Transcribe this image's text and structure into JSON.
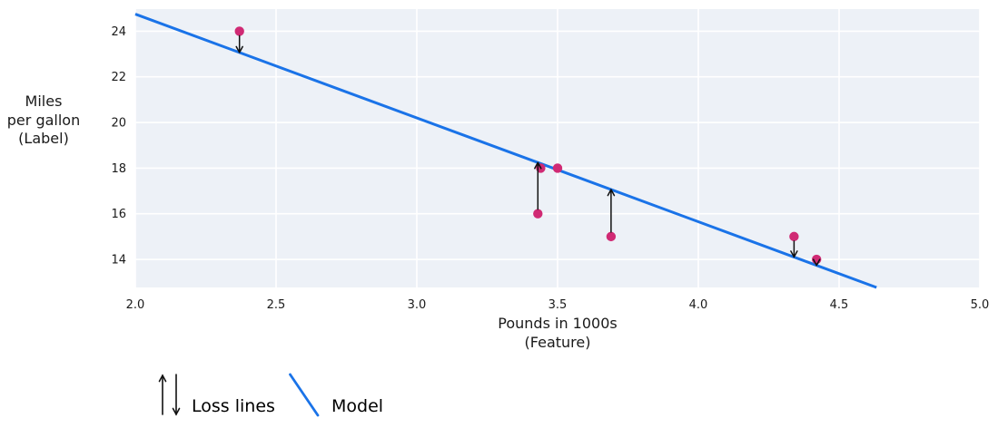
{
  "chart_data": {
    "type": "scatter",
    "title": "",
    "xlabel_lines": [
      "Pounds in 1000s",
      "(Feature)"
    ],
    "ylabel_lines": [
      "Miles",
      "per gallon",
      "(Label)"
    ],
    "x_tick_labels": [
      "2.0",
      "2.5",
      "3.0",
      "3.5",
      "4.0",
      "4.5",
      "5.0"
    ],
    "y_tick_labels": [
      "14",
      "16",
      "18",
      "20",
      "22",
      "24"
    ],
    "xlim": [
      2.0,
      5.0
    ],
    "ylim": [
      12.77,
      24.97
    ],
    "grid": true,
    "points": [
      {
        "x": 2.37,
        "y": 24,
        "loss_line": true
      },
      {
        "x": 3.43,
        "y": 16,
        "loss_line": true
      },
      {
        "x": 3.44,
        "y": 18,
        "loss_line": false
      },
      {
        "x": 3.5,
        "y": 18,
        "loss_line": false
      },
      {
        "x": 3.69,
        "y": 15,
        "loss_line": true
      },
      {
        "x": 4.34,
        "y": 15,
        "loss_line": true
      },
      {
        "x": 4.42,
        "y": 14,
        "loss_line": true
      }
    ],
    "model_line": {
      "slope": -4.55,
      "intercept": 33.85
    },
    "legend": [
      {
        "icon": "loss-arrows",
        "label": "Loss lines"
      },
      {
        "icon": "model-line",
        "label": "Model"
      }
    ],
    "colors": {
      "model_line": "#1a73e8",
      "point": "#d02a74",
      "loss_arrow": "#111111",
      "plot_background": "#edf1f7",
      "gridline": "#ffffff",
      "text": "#1a1a1a"
    }
  }
}
